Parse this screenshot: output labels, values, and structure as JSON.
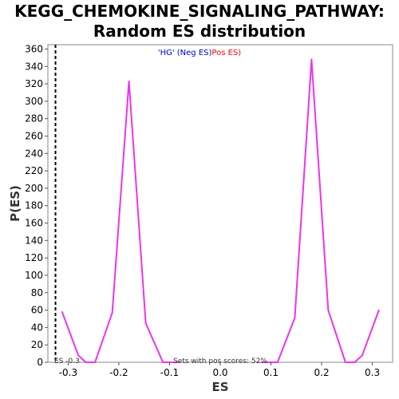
{
  "chart_data": {
    "type": "line",
    "title_line1": "KEGG_CHEMOKINE_SIGNALING_PATHWAY:",
    "title_line2": "Random ES distribution",
    "xlabel": "ES",
    "ylabel": "P(ES)",
    "xlim": [
      -0.34,
      0.34
    ],
    "ylim": [
      0,
      365
    ],
    "xticks": [
      -0.3,
      -0.2,
      -0.1,
      0.0,
      0.1,
      0.2,
      0.3
    ],
    "xtick_labels": [
      "-0.3",
      "-0.2",
      "-0.1",
      "0.0",
      "0.1",
      "0.2",
      "0.3"
    ],
    "yticks": [
      0,
      20,
      40,
      60,
      80,
      100,
      120,
      140,
      160,
      180,
      200,
      220,
      240,
      260,
      280,
      300,
      320,
      340,
      360
    ],
    "ytick_labels": [
      "0",
      "20",
      "40",
      "60",
      "80",
      "100",
      "120",
      "140",
      "160",
      "180",
      "200",
      "220",
      "240",
      "260",
      "280",
      "300",
      "320",
      "340",
      "360"
    ],
    "grid": true,
    "legend": {
      "placement": "top-center",
      "neg_text": "'HG' (Neg ES)",
      "pos_text": "Pos ES)",
      "neg_color": "#0000cc",
      "pos_color": "#ff0000"
    },
    "series": [
      {
        "color": "#ee33ee",
        "segments": [
          {
            "x": [
              -0.312,
              -0.28,
              -0.265,
              -0.247,
              -0.213,
              -0.18,
              -0.147,
              -0.113,
              -0.08
            ],
            "y": [
              58,
              8,
              0,
              0,
              57,
              323,
              45,
              0,
              0
            ]
          },
          {
            "x": [
              0.08,
              0.113,
              0.147,
              0.18,
              0.213,
              0.247,
              0.265,
              0.28,
              0.313
            ],
            "y": [
              0,
              0,
              51,
              348,
              60,
              0,
              0,
              8,
              60
            ]
          }
        ]
      }
    ],
    "observed_es_line": {
      "x": -0.325,
      "label": "ES -0.3"
    },
    "annotation": "Sets with pos scores: 52%"
  }
}
